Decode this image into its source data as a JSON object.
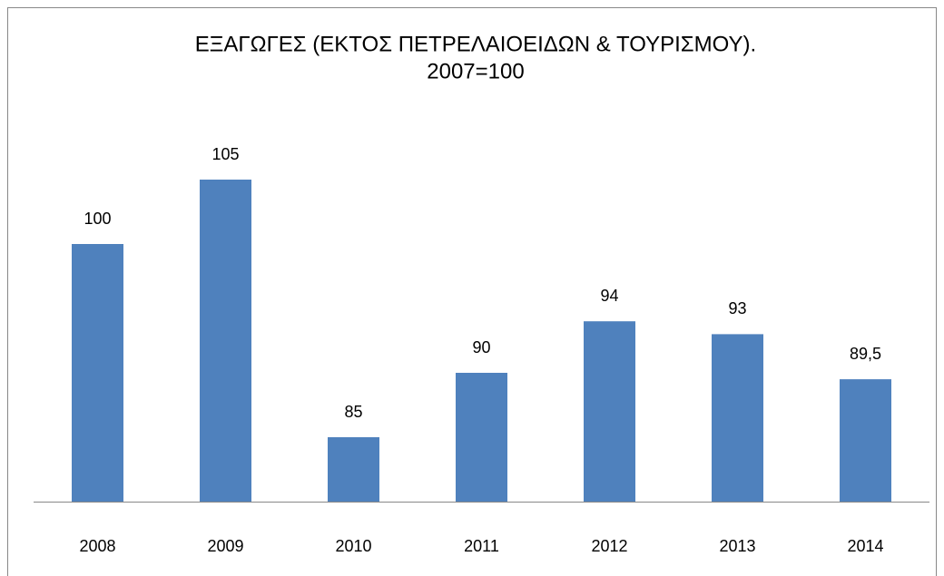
{
  "chart_data": {
    "type": "bar",
    "title": [
      "ΕΞΑΓΩΓΕΣ (ΕΚΤΟΣ ΠΕΤΡΕΛΑΙΟΕΙΔΩΝ & ΤΟΥΡΙΣΜΟΥ).",
      "2007=100"
    ],
    "categories": [
      "2008",
      "2009",
      "2010",
      "2011",
      "2012",
      "2013",
      "2014"
    ],
    "values": [
      100,
      105,
      85,
      90,
      94,
      93,
      89.5
    ],
    "value_labels": [
      "100",
      "105",
      "85",
      "90",
      "94",
      "93",
      "89,5"
    ],
    "color": "#4f81bd",
    "ylim": [
      80,
      110
    ]
  }
}
